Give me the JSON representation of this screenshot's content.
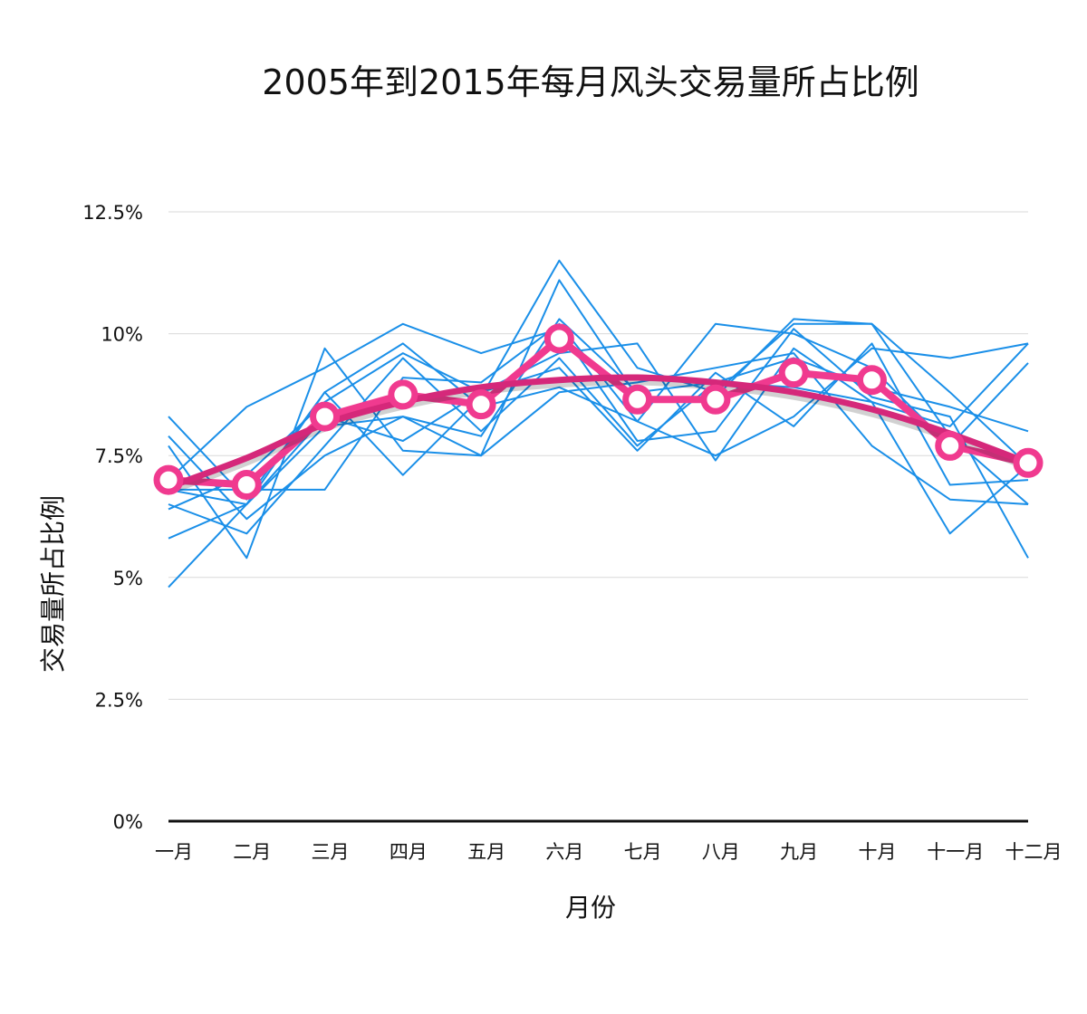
{
  "title": "2005年到2015年每月风头交易量所占比例",
  "colors": {
    "yearly": "#1a8fe8",
    "average": "#f03a8f",
    "trend": "#d5287a"
  },
  "chart_data": {
    "type": "line",
    "xlabel": "月份",
    "ylabel": "交易量所占比例",
    "ylim": [
      0,
      12.5
    ],
    "yticks": [
      {
        "value": 0,
        "label": "0%"
      },
      {
        "value": 2.5,
        "label": "2.5%"
      },
      {
        "value": 5,
        "label": "5%"
      },
      {
        "value": 7.5,
        "label": "7.5%"
      },
      {
        "value": 10,
        "label": "10%"
      },
      {
        "value": 12.5,
        "label": "12.5%"
      }
    ],
    "grid": true,
    "categories": [
      "一月",
      "二月",
      "三月",
      "四月",
      "五月",
      "六月",
      "七月",
      "八月",
      "九月",
      "十月",
      "十一月",
      "十二月"
    ],
    "series": [
      {
        "values": [
          8.3,
          6.6,
          8.8,
          7.1,
          8.7,
          11.5,
          9.3,
          8.8,
          10.2,
          10.2,
          8.8,
          7.3
        ]
      },
      {
        "values": [
          7.9,
          6.2,
          7.5,
          8.3,
          7.5,
          11.1,
          8.7,
          8.7,
          10.3,
          10.2,
          7.9,
          6.5
        ]
      },
      {
        "values": [
          7.0,
          8.5,
          9.3,
          10.2,
          9.6,
          10.1,
          7.8,
          8.0,
          10.1,
          8.7,
          8.3,
          5.4
        ]
      },
      {
        "values": [
          6.4,
          7.1,
          8.6,
          9.6,
          8.8,
          9.6,
          9.8,
          7.4,
          9.7,
          8.6,
          5.9,
          7.3
        ]
      },
      {
        "values": [
          6.8,
          6.5,
          8.8,
          9.8,
          8.5,
          8.9,
          8.2,
          10.2,
          10.0,
          9.3,
          7.7,
          9.4
        ]
      },
      {
        "values": [
          5.8,
          6.5,
          8.1,
          8.3,
          7.9,
          10.3,
          8.8,
          9.0,
          8.9,
          8.6,
          8.1,
          9.8
        ]
      },
      {
        "values": [
          4.8,
          6.5,
          8.3,
          7.8,
          8.8,
          9.3,
          7.6,
          9.2,
          8.1,
          9.8,
          6.9,
          7.0
        ]
      },
      {
        "values": [
          7.7,
          5.4,
          9.7,
          7.6,
          7.5,
          8.8,
          9.0,
          9.3,
          9.6,
          7.7,
          6.6,
          6.5
        ]
      },
      {
        "values": [
          6.8,
          6.8,
          6.8,
          9.1,
          9.0,
          10.2,
          8.2,
          7.5,
          8.3,
          9.7,
          9.5,
          9.8
        ]
      },
      {
        "values": [
          6.5,
          5.9,
          7.7,
          9.5,
          8.0,
          9.5,
          7.7,
          9.0,
          9.5,
          8.9,
          8.5,
          8.0
        ]
      }
    ],
    "average": {
      "values": [
        7.0,
        6.9,
        8.3,
        8.75,
        8.55,
        9.9,
        8.65,
        8.65,
        9.2,
        9.05,
        7.7,
        7.35
      ]
    },
    "trend": {
      "values": [
        6.85,
        7.45,
        8.15,
        8.6,
        8.9,
        9.05,
        9.1,
        9.0,
        8.8,
        8.45,
        7.95,
        7.35
      ]
    }
  }
}
